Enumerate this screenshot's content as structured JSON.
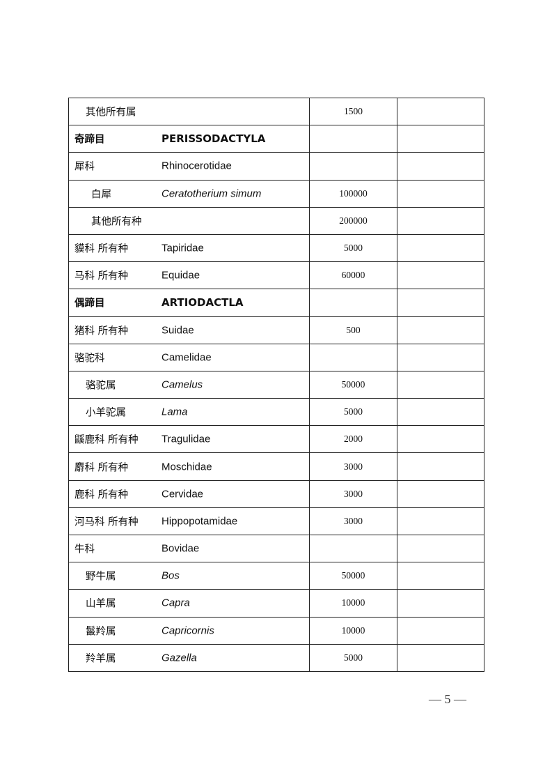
{
  "rows": [
    {
      "cn": "其他所有属",
      "latin": "",
      "value": "1500",
      "indent": 1,
      "bold": false,
      "italic": false
    },
    {
      "cn": "奇蹄目",
      "latin": "PERISSODACTYLA",
      "value": "",
      "indent": 0,
      "bold": true,
      "italic": false
    },
    {
      "cn": "犀科",
      "latin": "Rhinocerotidae",
      "value": "",
      "indent": 0,
      "bold": false,
      "italic": false
    },
    {
      "cn": "白犀",
      "latin": "Ceratotherium simum",
      "value": "100000",
      "indent": 2,
      "bold": false,
      "italic": true
    },
    {
      "cn": "其他所有种",
      "latin": "",
      "value": "200000",
      "indent": 2,
      "bold": false,
      "italic": false
    },
    {
      "cn": "貘科  所有种",
      "latin": "Tapiridae",
      "value": "5000",
      "indent": 0,
      "bold": false,
      "italic": false
    },
    {
      "cn": "马科  所有种",
      "latin": "Equidae",
      "value": "60000",
      "indent": 0,
      "bold": false,
      "italic": false
    },
    {
      "cn": "偶蹄目",
      "latin": "ARTIODACTLA",
      "value": "",
      "indent": 0,
      "bold": true,
      "italic": false
    },
    {
      "cn": "猪科  所有种",
      "latin": "Suidae",
      "value": "500",
      "indent": 0,
      "bold": false,
      "italic": false
    },
    {
      "cn": "骆驼科",
      "latin": "Camelidae",
      "value": "",
      "indent": 0,
      "bold": false,
      "italic": false
    },
    {
      "cn": "骆驼属",
      "latin": "Camelus",
      "value": "50000",
      "indent": 1,
      "bold": false,
      "italic": true
    },
    {
      "cn": "小羊驼属",
      "latin": "Lama",
      "value": "5000",
      "indent": 1,
      "bold": false,
      "italic": true
    },
    {
      "cn": "鼷鹿科  所有种",
      "latin": "Tragulidae",
      "value": "2000",
      "indent": 0,
      "bold": false,
      "italic": false
    },
    {
      "cn": "麝科  所有种",
      "latin": "Moschidae",
      "value": "3000",
      "indent": 0,
      "bold": false,
      "italic": false
    },
    {
      "cn": "鹿科  所有种",
      "latin": "Cervidae",
      "value": "3000",
      "indent": 0,
      "bold": false,
      "italic": false
    },
    {
      "cn": "河马科  所有种",
      "latin": "Hippopotamidae",
      "value": "3000",
      "indent": 0,
      "bold": false,
      "italic": false
    },
    {
      "cn": "牛科",
      "latin": "Bovidae",
      "value": "",
      "indent": 0,
      "bold": false,
      "italic": false
    },
    {
      "cn": "野牛属",
      "latin": "Bos",
      "value": "50000",
      "indent": 1,
      "bold": false,
      "italic": true
    },
    {
      "cn": "山羊属",
      "latin": "Capra",
      "value": "10000",
      "indent": 1,
      "bold": false,
      "italic": true
    },
    {
      "cn": "鬣羚属",
      "latin": "Capricornis",
      "value": "10000",
      "indent": 1,
      "bold": false,
      "italic": true
    },
    {
      "cn": "羚羊属",
      "latin": "Gazella",
      "value": "5000",
      "indent": 1,
      "bold": false,
      "italic": true
    }
  ],
  "page_number": "— 5 —"
}
